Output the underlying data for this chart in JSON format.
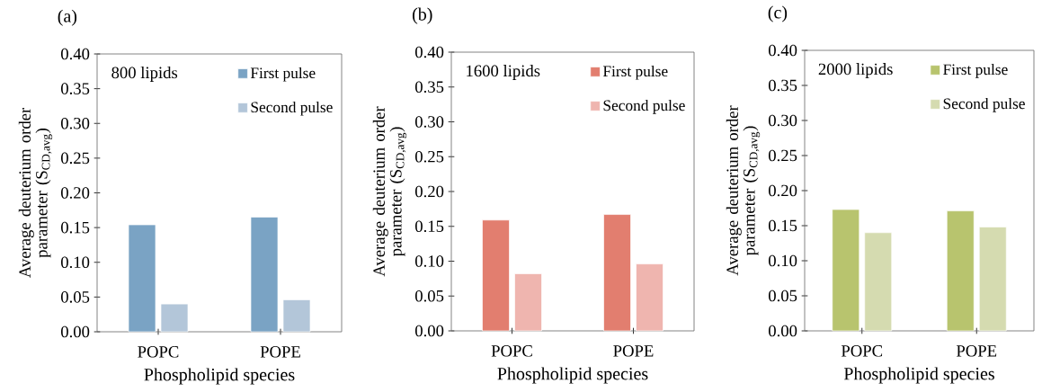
{
  "chart_data": [
    {
      "type": "bar",
      "title": "(a)",
      "annotations": [
        "800 lipids"
      ],
      "xlabel": "Phospholipid  species",
      "ylabel": "Average deuterium order parameter (S$_{CD,avg}$)",
      "categories": [
        "POPC",
        "POPE"
      ],
      "series": [
        {
          "name": "First pulse",
          "color": "#7aa3c4",
          "values": [
            0.154,
            0.165
          ]
        },
        {
          "name": "Second pulse",
          "color": "#b3c6d9",
          "values": [
            0.04,
            0.046
          ]
        }
      ],
      "ylim": [
        0,
        0.4
      ],
      "yticks": [
        {
          "value": 0,
          "label": "0.00"
        },
        {
          "value": 0.05,
          "label": "0.05"
        },
        {
          "value": 0.1,
          "label": "0.10"
        },
        {
          "value": 0.15,
          "label": "0.15"
        },
        {
          "value": 0.2,
          "label": "0.20"
        },
        {
          "value": 0.25,
          "label": "0.25"
        },
        {
          "value": 0.3,
          "label": "0.30"
        },
        {
          "value": 0.35,
          "label": "0.35"
        },
        {
          "value": 0.4,
          "label": "0.40"
        }
      ],
      "legend": "top right"
    },
    {
      "type": "bar",
      "title": "(b)",
      "annotations": [
        "1600 lipids"
      ],
      "xlabel": "Phospholipid  species",
      "ylabel": "Average deuterium order parameter (S$_{CD,avg}$)",
      "categories": [
        "POPC",
        "POPE"
      ],
      "series": [
        {
          "name": "First pulse",
          "color": "#e27e6f",
          "values": [
            0.159,
            0.167
          ]
        },
        {
          "name": "Second pulse",
          "color": "#efb5af",
          "values": [
            0.082,
            0.096
          ]
        }
      ],
      "ylim": [
        0,
        0.4
      ],
      "yticks": [
        {
          "value": 0,
          "label": "0.00"
        },
        {
          "value": 0.05,
          "label": "0.05"
        },
        {
          "value": 0.1,
          "label": "0.10"
        },
        {
          "value": 0.15,
          "label": "0.15"
        },
        {
          "value": 0.2,
          "label": "0.20"
        },
        {
          "value": 0.25,
          "label": "0.25"
        },
        {
          "value": 0.3,
          "label": "0.30"
        },
        {
          "value": 0.35,
          "label": "0.35"
        },
        {
          "value": 0.4,
          "label": "0.40"
        }
      ],
      "legend": "top right"
    },
    {
      "type": "bar",
      "title": "(c)",
      "annotations": [
        "2000 lipids"
      ],
      "xlabel": "Phospholipid  species",
      "ylabel": "Average deuterium order parameter (S$_{CD,avg}$)",
      "categories": [
        "POPC",
        "POPE"
      ],
      "series": [
        {
          "name": "First pulse",
          "color": "#b8c46e",
          "values": [
            0.173,
            0.171
          ]
        },
        {
          "name": "Second pulse",
          "color": "#d5dbb0",
          "values": [
            0.14,
            0.148
          ]
        }
      ],
      "ylim": [
        0,
        0.4
      ],
      "yticks": [
        {
          "value": 0,
          "label": "0.00"
        },
        {
          "value": 0.05,
          "label": "0.05"
        },
        {
          "value": 0.1,
          "label": "0.10"
        },
        {
          "value": 0.15,
          "label": "0.15"
        },
        {
          "value": 0.2,
          "label": "0.20"
        },
        {
          "value": 0.25,
          "label": "0.25"
        },
        {
          "value": 0.3,
          "label": "0.30"
        },
        {
          "value": 0.35,
          "label": "0.35"
        },
        {
          "value": 0.4,
          "label": "0.40"
        }
      ],
      "legend": "top right"
    }
  ]
}
